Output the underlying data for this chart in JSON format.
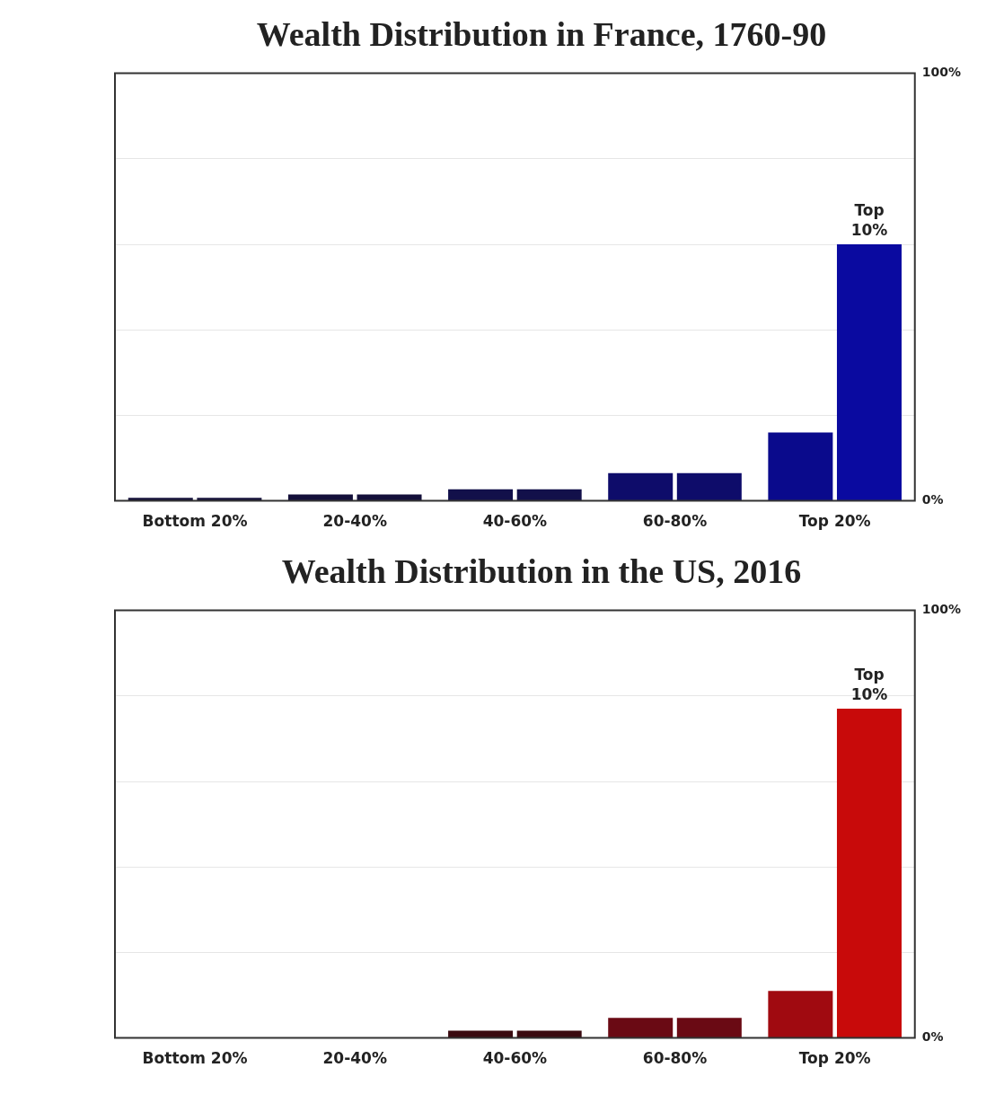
{
  "chart_data": [
    {
      "type": "bar",
      "title": "Wealth Distribution in France, 1760-90",
      "categories": [
        "Bottom 20%",
        "20-40%",
        "40-60%",
        "60-80%",
        "Top 20%"
      ],
      "series": [
        {
          "colors": [
            "#14103a",
            "#14103a",
            "#12104a",
            "#0e0c6a",
            "#0a0a8c"
          ],
          "values": [
            0.7,
            1.5,
            2.7,
            6.5,
            16
          ]
        },
        {
          "colors": [
            "#14103a",
            "#14103a",
            "#12104a",
            "#0e0c6a",
            "#0a0aa0"
          ],
          "values": [
            0.7,
            1.5,
            2.7,
            6.5,
            60
          ]
        }
      ],
      "ylim": [
        0,
        100
      ],
      "yticks": [
        {
          "value": 0,
          "label": "0%"
        },
        {
          "value": 20,
          "label": null
        },
        {
          "value": 40,
          "label": null
        },
        {
          "value": 60,
          "label": null
        },
        {
          "value": 80,
          "label": null
        },
        {
          "value": 100,
          "label": "100%"
        }
      ],
      "grid": "y",
      "annotations": [
        {
          "text": "Top 10%",
          "x": "Top 20%",
          "y": 60
        }
      ]
    },
    {
      "type": "bar",
      "title": "Wealth Distribution in the US, 2016",
      "categories": [
        "Bottom 20%",
        "20-40%",
        "40-60%",
        "60-80%",
        "Top 20%"
      ],
      "series": [
        {
          "colors": [
            "#2a1010",
            "#2a1010",
            "#3a0a10",
            "#6a0a14",
            "#a00a10"
          ],
          "values": [
            null,
            null,
            1.7,
            4.7,
            11
          ]
        },
        {
          "colors": [
            "#2a1010",
            "#2a1010",
            "#3a0a10",
            "#6a0a14",
            "#c80a0a"
          ],
          "values": [
            null,
            null,
            1.7,
            4.7,
            77
          ]
        }
      ],
      "ylim": [
        0,
        100
      ],
      "yticks": [
        {
          "value": 0,
          "label": "0%"
        },
        {
          "value": 20,
          "label": null
        },
        {
          "value": 40,
          "label": null
        },
        {
          "value": 60,
          "label": null
        },
        {
          "value": 80,
          "label": null
        },
        {
          "value": 100,
          "label": "100%"
        }
      ],
      "grid": "y",
      "annotations": [
        {
          "text": "Top 10%",
          "x": "Top 20%",
          "y": 77
        }
      ]
    }
  ]
}
